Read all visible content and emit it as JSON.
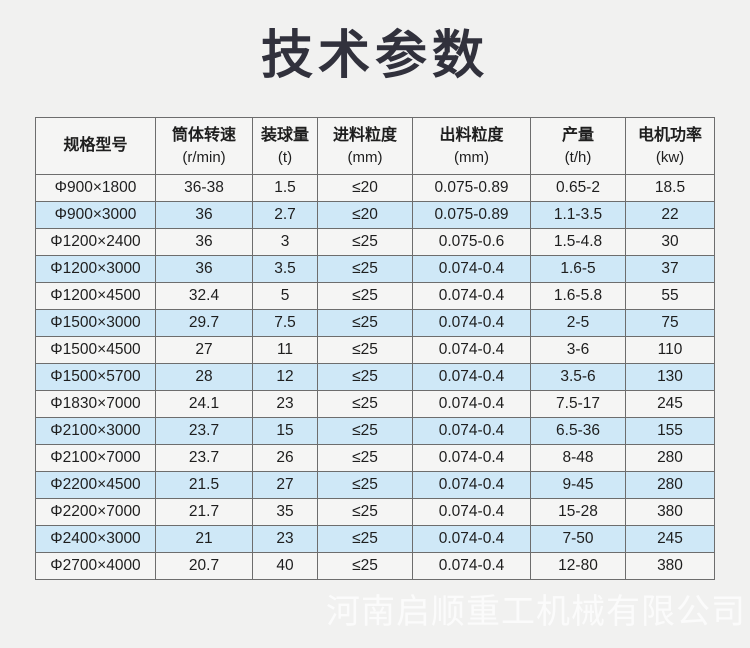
{
  "title": "技术参数",
  "watermark": "河南启顺重工机械有限公司",
  "colors": {
    "page_bg": "#f1f1f0",
    "cell_bg": "#f5f5f4",
    "row_alt_bg": "#cfe8f7",
    "border_color": "#6d6d6d",
    "title_color": "#31313c",
    "text_color": "#1e1e1e"
  },
  "table": {
    "headers": [
      {
        "label": "规格型号",
        "unit": ""
      },
      {
        "label": "筒体转速",
        "unit": "(r/min)"
      },
      {
        "label": "装球量",
        "unit": "(t)"
      },
      {
        "label": "进料粒度",
        "unit": "(mm)"
      },
      {
        "label": "出料粒度",
        "unit": "(mm)"
      },
      {
        "label": "产量",
        "unit": "(t/h)"
      },
      {
        "label": "电机功率",
        "unit": "(kw)"
      }
    ],
    "rows": [
      [
        "Φ900×1800",
        "36-38",
        "1.5",
        "≤20",
        "0.075-0.89",
        "0.65-2",
        "18.5"
      ],
      [
        "Φ900×3000",
        "36",
        "2.7",
        "≤20",
        "0.075-0.89",
        "1.1-3.5",
        "22"
      ],
      [
        "Φ1200×2400",
        "36",
        "3",
        "≤25",
        "0.075-0.6",
        "1.5-4.8",
        "30"
      ],
      [
        "Φ1200×3000",
        "36",
        "3.5",
        "≤25",
        "0.074-0.4",
        "1.6-5",
        "37"
      ],
      [
        "Φ1200×4500",
        "32.4",
        "5",
        "≤25",
        "0.074-0.4",
        "1.6-5.8",
        "55"
      ],
      [
        "Φ1500×3000",
        "29.7",
        "7.5",
        "≤25",
        "0.074-0.4",
        "2-5",
        "75"
      ],
      [
        "Φ1500×4500",
        "27",
        "11",
        "≤25",
        "0.074-0.4",
        "3-6",
        "110"
      ],
      [
        "Φ1500×5700",
        "28",
        "12",
        "≤25",
        "0.074-0.4",
        "3.5-6",
        "130"
      ],
      [
        "Φ1830×7000",
        "24.1",
        "23",
        "≤25",
        "0.074-0.4",
        "7.5-17",
        "245"
      ],
      [
        "Φ2100×3000",
        "23.7",
        "15",
        "≤25",
        "0.074-0.4",
        "6.5-36",
        "155"
      ],
      [
        "Φ2100×7000",
        "23.7",
        "26",
        "≤25",
        "0.074-0.4",
        "8-48",
        "280"
      ],
      [
        "Φ2200×4500",
        "21.5",
        "27",
        "≤25",
        "0.074-0.4",
        "9-45",
        "280"
      ],
      [
        "Φ2200×7000",
        "21.7",
        "35",
        "≤25",
        "0.074-0.4",
        "15-28",
        "380"
      ],
      [
        "Φ2400×3000",
        "21",
        "23",
        "≤25",
        "0.074-0.4",
        "7-50",
        "245"
      ],
      [
        "Φ2700×4000",
        "20.7",
        "40",
        "≤25",
        "0.074-0.4",
        "12-80",
        "380"
      ]
    ]
  }
}
